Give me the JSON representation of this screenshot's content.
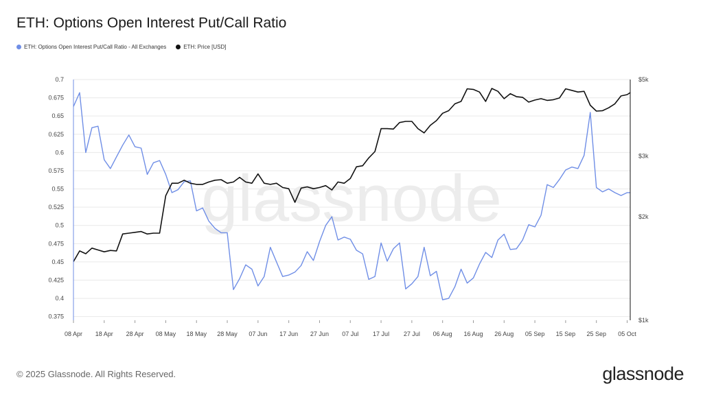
{
  "page": {
    "title": "ETH: Options Open Interest Put/Call Ratio",
    "footer": "© 2025 Glassnode. All Rights Reserved.",
    "brand": "glassnode",
    "watermark": "glassnode"
  },
  "colors": {
    "ratio": "#6f8ee6",
    "price": "#111111",
    "grid": "#e9e9e9"
  },
  "chart_data": {
    "type": "line",
    "x": [
      "2025-04-08",
      "2025-04-10",
      "2025-04-12",
      "2025-04-14",
      "2025-04-16",
      "2025-04-18",
      "2025-04-20",
      "2025-04-22",
      "2025-04-24",
      "2025-04-26",
      "2025-04-28",
      "2025-04-30",
      "2025-05-02",
      "2025-05-04",
      "2025-05-06",
      "2025-05-08",
      "2025-05-10",
      "2025-05-12",
      "2025-05-14",
      "2025-05-16",
      "2025-05-18",
      "2025-05-20",
      "2025-05-22",
      "2025-05-24",
      "2025-05-26",
      "2025-05-28",
      "2025-05-30",
      "2025-06-01",
      "2025-06-03",
      "2025-06-05",
      "2025-06-07",
      "2025-06-09",
      "2025-06-11",
      "2025-06-13",
      "2025-06-15",
      "2025-06-17",
      "2025-06-19",
      "2025-06-21",
      "2025-06-23",
      "2025-06-25",
      "2025-06-27",
      "2025-06-29",
      "2025-07-01",
      "2025-07-03",
      "2025-07-05",
      "2025-07-07",
      "2025-07-09",
      "2025-07-11",
      "2025-07-13",
      "2025-07-15",
      "2025-07-17",
      "2025-07-19",
      "2025-07-21",
      "2025-07-23",
      "2025-07-25",
      "2025-07-27",
      "2025-07-29",
      "2025-07-31",
      "2025-08-02",
      "2025-08-04",
      "2025-08-06",
      "2025-08-08",
      "2025-08-10",
      "2025-08-12",
      "2025-08-14",
      "2025-08-16",
      "2025-08-18",
      "2025-08-20",
      "2025-08-22",
      "2025-08-24",
      "2025-08-26",
      "2025-08-28",
      "2025-08-30",
      "2025-09-01",
      "2025-09-03",
      "2025-09-05",
      "2025-09-07",
      "2025-09-09",
      "2025-09-11",
      "2025-09-13",
      "2025-09-15",
      "2025-09-17",
      "2025-09-19",
      "2025-09-21",
      "2025-09-23",
      "2025-09-25",
      "2025-09-27",
      "2025-09-29",
      "2025-10-01",
      "2025-10-03",
      "2025-10-05",
      "2025-10-06"
    ],
    "series": [
      {
        "name": "ETH: Options Open Interest Put/Call Ratio - All Exchanges",
        "axis": "left",
        "values": [
          0.663,
          0.682,
          0.6,
          0.634,
          0.636,
          0.59,
          0.578,
          0.594,
          0.61,
          0.624,
          0.608,
          0.606,
          0.57,
          0.586,
          0.589,
          0.57,
          0.545,
          0.549,
          0.56,
          0.561,
          0.52,
          0.524,
          0.506,
          0.496,
          0.49,
          0.49,
          0.412,
          0.427,
          0.446,
          0.44,
          0.417,
          0.43,
          0.47,
          0.45,
          0.43,
          0.432,
          0.436,
          0.445,
          0.464,
          0.452,
          0.478,
          0.5,
          0.512,
          0.48,
          0.484,
          0.481,
          0.466,
          0.461,
          0.426,
          0.43,
          0.476,
          0.451,
          0.468,
          0.476,
          0.413,
          0.42,
          0.43,
          0.47,
          0.431,
          0.437,
          0.398,
          0.4,
          0.416,
          0.44,
          0.421,
          0.428,
          0.447,
          0.463,
          0.456,
          0.48,
          0.488,
          0.467,
          0.468,
          0.48,
          0.501,
          0.498,
          0.514,
          0.556,
          0.552,
          0.563,
          0.576,
          0.58,
          0.578,
          0.596,
          0.655,
          0.552,
          0.546,
          0.55,
          0.545,
          0.541,
          0.545,
          0.545
        ]
      },
      {
        "name": "ETH: Price [USD]",
        "axis": "right",
        "values": [
          1480,
          1590,
          1560,
          1620,
          1600,
          1580,
          1595,
          1590,
          1780,
          1790,
          1800,
          1810,
          1780,
          1790,
          1790,
          2300,
          2500,
          2500,
          2550,
          2500,
          2480,
          2480,
          2520,
          2550,
          2560,
          2500,
          2520,
          2600,
          2520,
          2500,
          2660,
          2500,
          2480,
          2500,
          2430,
          2410,
          2200,
          2420,
          2440,
          2410,
          2430,
          2460,
          2390,
          2520,
          2500,
          2580,
          2790,
          2810,
          2960,
          3090,
          3600,
          3600,
          3590,
          3750,
          3780,
          3780,
          3600,
          3500,
          3680,
          3800,
          3990,
          4060,
          4250,
          4320,
          4700,
          4680,
          4600,
          4320,
          4710,
          4620,
          4400,
          4550,
          4460,
          4440,
          4300,
          4360,
          4400,
          4350,
          4370,
          4420,
          4700,
          4650,
          4600,
          4620,
          4210,
          4050,
          4060,
          4140,
          4250,
          4480,
          4520,
          4580
        ]
      }
    ],
    "x_ticks": [
      "08 Apr",
      "18 Apr",
      "28 Apr",
      "08 May",
      "18 May",
      "28 May",
      "07 Jun",
      "17 Jun",
      "27 Jun",
      "07 Jul",
      "17 Jul",
      "27 Jul",
      "06 Aug",
      "16 Aug",
      "26 Aug",
      "05 Sep",
      "15 Sep",
      "25 Sep",
      "05 Oct"
    ],
    "y_left": {
      "ticks": [
        "0.375",
        "0.4",
        "0.425",
        "0.45",
        "0.475",
        "0.5",
        "0.525",
        "0.55",
        "0.575",
        "0.6",
        "0.625",
        "0.65",
        "0.675",
        "0.7"
      ],
      "range": [
        0.37,
        0.7
      ]
    },
    "y_right": {
      "scale": "log",
      "ticks": [
        "$1k",
        "$2k",
        "$3k",
        "$5k"
      ],
      "tick_values": [
        1000,
        2000,
        3000,
        5000
      ],
      "range": [
        1000,
        5000
      ]
    },
    "legend_position": "top-left",
    "grid": "horizontal"
  }
}
